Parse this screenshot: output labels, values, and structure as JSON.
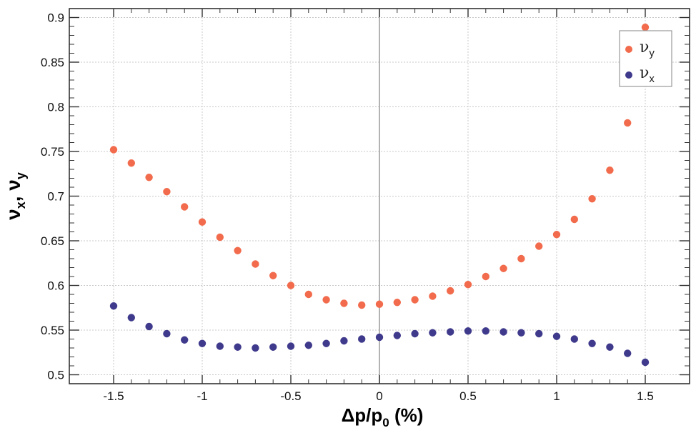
{
  "chart_data": {
    "type": "scatter",
    "xlabel": {
      "main": "Δp/p",
      "sub": "0",
      "suffix": " (%)"
    },
    "ylabel": {
      "a": "ν",
      "a_sub": "x",
      "sep": ", ",
      "b": "ν",
      "b_sub": "y"
    },
    "xlim": [
      -1.75,
      1.75
    ],
    "ylim": [
      0.49,
      0.91
    ],
    "xticks": [
      -1.5,
      -1,
      -0.5,
      0,
      0.5,
      1,
      1.5
    ],
    "xtick_labels": [
      "-1.5",
      "-1",
      "-0.5",
      "0",
      "0.5",
      "1",
      "1.5"
    ],
    "yticks": [
      0.5,
      0.55,
      0.6,
      0.65,
      0.7,
      0.75,
      0.8,
      0.85,
      0.9
    ],
    "ytick_labels": [
      "0.5",
      "0.55",
      "0.6",
      "0.65",
      "0.7",
      "0.75",
      "0.8",
      "0.85",
      "0.9"
    ],
    "grid": true,
    "legend_position": "top-right",
    "x": [
      -1.5,
      -1.4,
      -1.3,
      -1.2,
      -1.1,
      -1.0,
      -0.9,
      -0.8,
      -0.7,
      -0.6,
      -0.5,
      -0.4,
      -0.3,
      -0.2,
      -0.1,
      0.0,
      0.1,
      0.2,
      0.3,
      0.4,
      0.5,
      0.6,
      0.7,
      0.8,
      0.9,
      1.0,
      1.1,
      1.2,
      1.3,
      1.4,
      1.5
    ],
    "series": [
      {
        "name": "ν_y",
        "legend_main": "ν",
        "legend_sub": "y",
        "color": "#f26b4c",
        "values": [
          0.752,
          0.737,
          0.721,
          0.705,
          0.688,
          0.671,
          0.654,
          0.639,
          0.624,
          0.611,
          0.6,
          0.59,
          0.584,
          0.58,
          0.578,
          0.579,
          0.581,
          0.584,
          0.588,
          0.594,
          0.601,
          0.61,
          0.619,
          0.63,
          0.644,
          0.657,
          0.674,
          0.697,
          0.729,
          0.782,
          0.889
        ]
      },
      {
        "name": "ν_x",
        "legend_main": "ν",
        "legend_sub": "x",
        "color": "#3f3a8c",
        "values": [
          0.577,
          0.564,
          0.554,
          0.546,
          0.539,
          0.535,
          0.532,
          0.531,
          0.53,
          0.531,
          0.532,
          0.533,
          0.535,
          0.538,
          0.54,
          0.542,
          0.544,
          0.546,
          0.547,
          0.548,
          0.549,
          0.549,
          0.548,
          0.547,
          0.546,
          0.543,
          0.54,
          0.535,
          0.531,
          0.524,
          0.514
        ]
      }
    ]
  }
}
